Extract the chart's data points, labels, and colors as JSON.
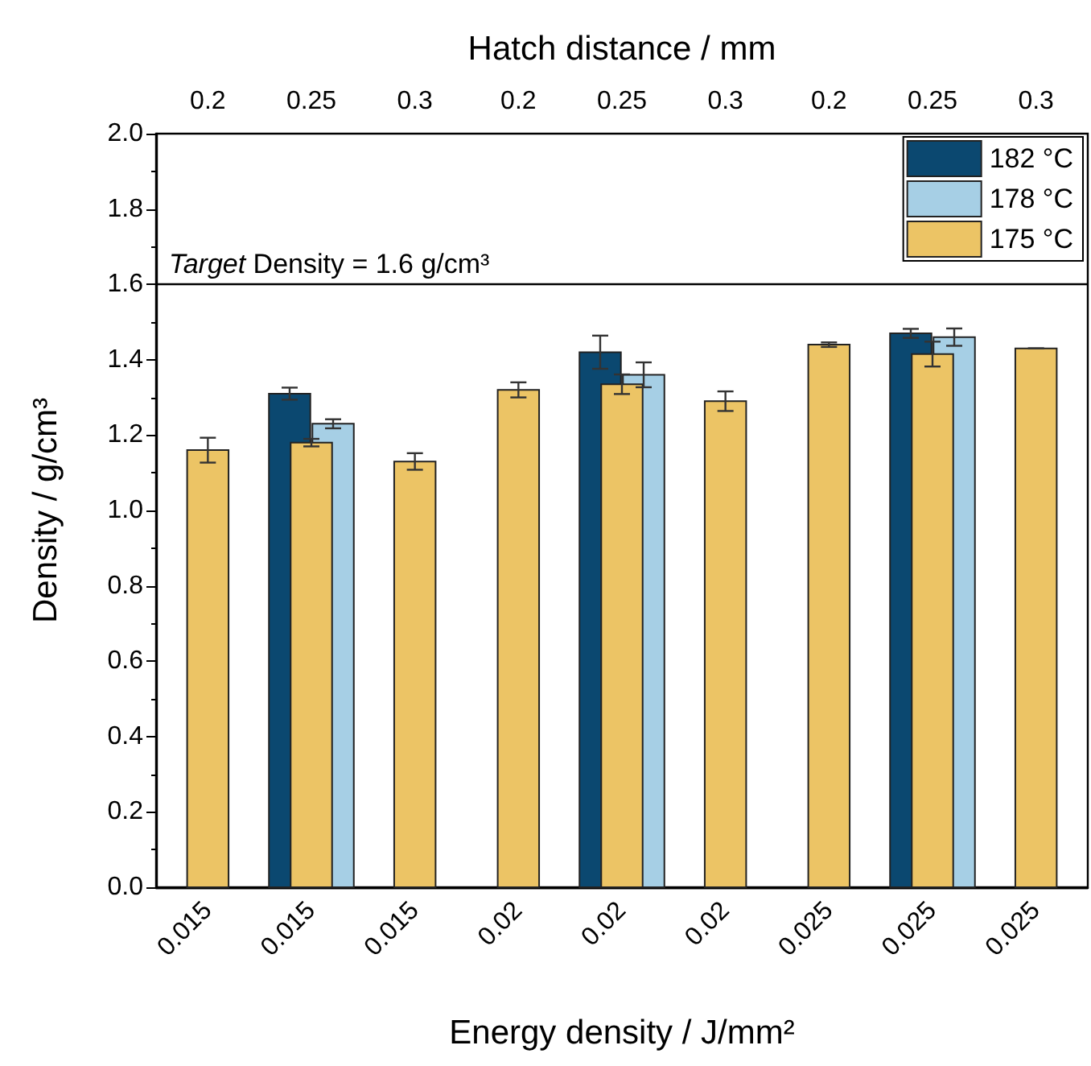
{
  "chart_data": {
    "type": "bar",
    "xlabel": "Energy density / J/mm²",
    "ylabel": "Density / g/cm³",
    "x2label": "Hatch distance / mm",
    "categories": [
      "0.015",
      "0.015",
      "0.015",
      "0.02",
      "0.02",
      "0.02",
      "0.025",
      "0.025",
      "0.025"
    ],
    "annotations": [
      "0.2",
      "0.25",
      "0.3",
      "0.2",
      "0.25",
      "0.3",
      "0.2",
      "0.25",
      "0.3"
    ],
    "series": [
      {
        "name": "182 °C",
        "color": "#0b4870",
        "values": [
          null,
          1.31,
          null,
          null,
          1.42,
          null,
          null,
          1.47,
          null
        ],
        "errors": [
          null,
          0.016,
          null,
          null,
          0.044,
          null,
          null,
          0.012,
          null
        ]
      },
      {
        "name": "178 °C",
        "color": "#a6cfe5",
        "values": [
          null,
          1.23,
          null,
          null,
          1.36,
          null,
          null,
          1.46,
          null
        ],
        "errors": [
          null,
          0.012,
          null,
          null,
          0.033,
          null,
          null,
          0.023,
          null
        ]
      },
      {
        "name": "175 °C",
        "color": "#ecc465",
        "values": [
          1.16,
          1.18,
          1.13,
          1.32,
          1.335,
          1.29,
          1.44,
          1.415,
          1.43
        ],
        "errors": [
          0.033,
          0.01,
          0.022,
          0.02,
          0.026,
          0.026,
          0.006,
          0.033,
          0
        ]
      }
    ],
    "ylim": [
      0,
      2
    ],
    "yticks": [
      {
        "value": 0,
        "label": "0.0"
      },
      {
        "value": 0.2,
        "label": "0.2"
      },
      {
        "value": 0.4,
        "label": "0.4"
      },
      {
        "value": 0.6,
        "label": "0.6"
      },
      {
        "value": 0.8,
        "label": "0.8"
      },
      {
        "value": 1,
        "label": "1.0"
      },
      {
        "value": 1.2,
        "label": "1.2"
      },
      {
        "value": 1.4,
        "label": "1.4"
      },
      {
        "value": 1.6,
        "label": "1.6"
      },
      {
        "value": 1.8,
        "label": "1.8"
      },
      {
        "value": 2,
        "label": "2.0"
      }
    ],
    "ref_lines": [
      {
        "axis": "y",
        "value": 1.6,
        "label": "Target Density = 1.6 g/cm³",
        "color": "#000000"
      }
    ],
    "grid": false,
    "legend": "top right"
  }
}
